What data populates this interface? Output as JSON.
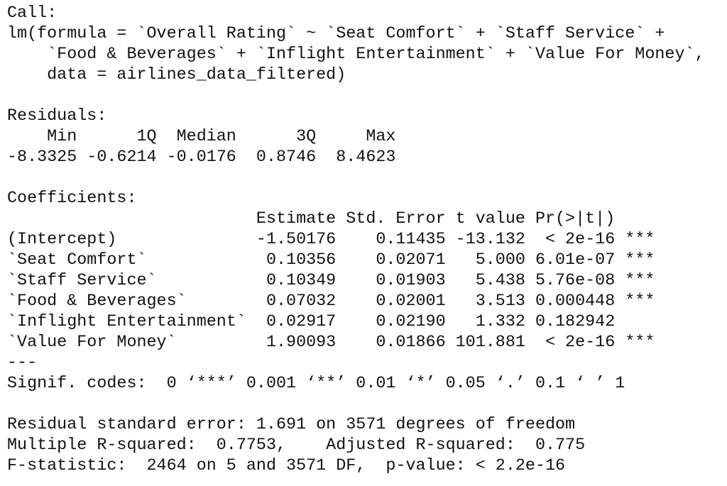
{
  "call": {
    "label": "Call:",
    "lines": [
      "lm(formula = `Overall Rating` ~ `Seat Comfort` + `Staff Service` + ",
      "    `Food & Beverages` + `Inflight Entertainment` + `Value For Money`, ",
      "    data = airlines_data_filtered)"
    ]
  },
  "residuals": {
    "label": "Residuals:",
    "header": "    Min      1Q  Median      3Q     Max ",
    "values": "-8.3325 -0.6214 -0.0176  0.8746  8.4623 "
  },
  "coefficients": {
    "label": "Coefficients:",
    "header": "                         Estimate Std. Error t value Pr(>|t|)    ",
    "rows": [
      "(Intercept)              -1.50176    0.11435 -13.132  < 2e-16 ***",
      "`Seat Comfort`            0.10356    0.02071   5.000 6.01e-07 ***",
      "`Staff Service`           0.10349    0.01903   5.438 5.76e-08 ***",
      "`Food & Beverages`        0.07032    0.02001   3.513 0.000448 ***",
      "`Inflight Entertainment`  0.02917    0.02190   1.332 0.182942    ",
      "`Value For Money`         1.90093    0.01866 101.881  < 2e-16 ***"
    ],
    "separator": "---",
    "signif": "Signif. codes:  0 ‘***’ 0.001 ‘**’ 0.01 ‘*’ 0.05 ‘.’ 0.1 ‘ ’ 1"
  },
  "summary": [
    "Residual standard error: 1.691 on 3571 degrees of freedom",
    "Multiple R-squared:  0.7753,    Adjusted R-squared:  0.775 ",
    "F-statistic:  2464 on 5 and 3571 DF,  p-value: < 2.2e-16"
  ]
}
